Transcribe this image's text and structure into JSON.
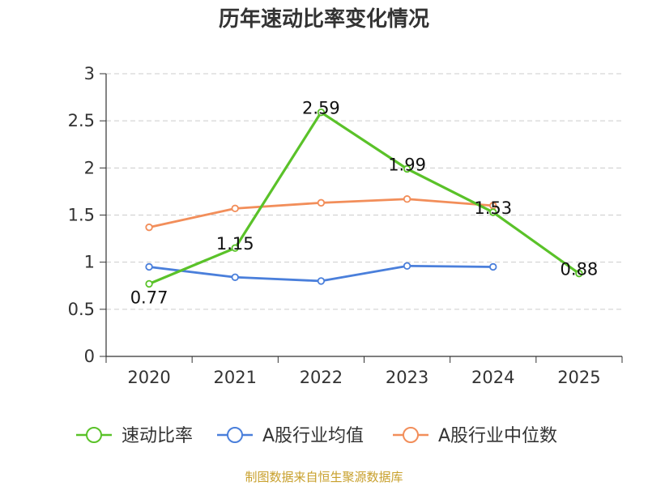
{
  "chart_data": {
    "type": "line",
    "title": "历年速动比率变化情况",
    "categories": [
      "2020",
      "2021",
      "2022",
      "2023",
      "2024",
      "2025"
    ],
    "ylim": [
      0,
      3
    ],
    "yticks": [
      "0",
      "0.5",
      "1",
      "1.5",
      "2",
      "2.5",
      "3"
    ],
    "grid": true,
    "legend_position": "bottom",
    "series": [
      {
        "name": "速动比率",
        "color": "#5ac229",
        "values": [
          0.77,
          1.15,
          2.59,
          1.99,
          1.53,
          0.88
        ],
        "labels": [
          "0.77",
          "1.15",
          "2.59",
          "1.99",
          "1.53",
          "0.88"
        ]
      },
      {
        "name": "A股行业均值",
        "color": "#4a7fdb",
        "values": [
          0.95,
          0.84,
          0.8,
          0.96,
          0.95,
          null
        ]
      },
      {
        "name": "A股行业中位数",
        "color": "#f28e5a",
        "values": [
          1.37,
          1.57,
          1.63,
          1.67,
          1.6,
          null
        ]
      }
    ]
  },
  "footer": {
    "source": "制图数据来自恒生聚源数据库"
  }
}
